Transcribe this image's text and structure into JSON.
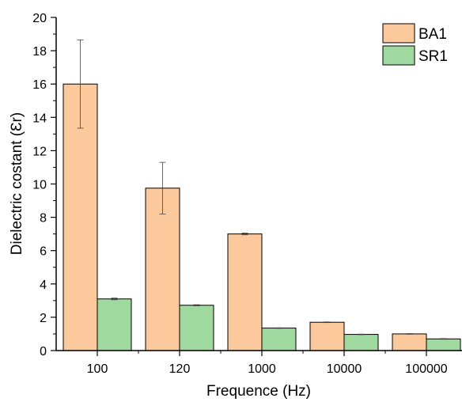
{
  "chart_data": {
    "type": "bar",
    "xlabel": "Frequence (Hz)",
    "ylabel": "Dielectric costant (Ɛr)",
    "categories": [
      "100",
      "120",
      "1000",
      "10000",
      "100000"
    ],
    "ylim": [
      0,
      20
    ],
    "yticks": [
      "0",
      "2",
      "4",
      "6",
      "8",
      "10",
      "12",
      "14",
      "16",
      "18",
      "20"
    ],
    "grid": false,
    "legend_position": "top-right",
    "series": [
      {
        "name": "BA1",
        "color": "#fbc99b",
        "values": [
          16.0,
          9.75,
          7.0,
          1.7,
          1.0
        ],
        "errors": [
          2.65,
          1.55,
          0.05,
          0.02,
          0.02
        ]
      },
      {
        "name": "SR1",
        "color": "#9fd99f",
        "values": [
          3.1,
          2.72,
          1.35,
          0.97,
          0.7
        ],
        "errors": [
          0.05,
          0.03,
          0.02,
          0.02,
          0.02
        ]
      }
    ]
  }
}
